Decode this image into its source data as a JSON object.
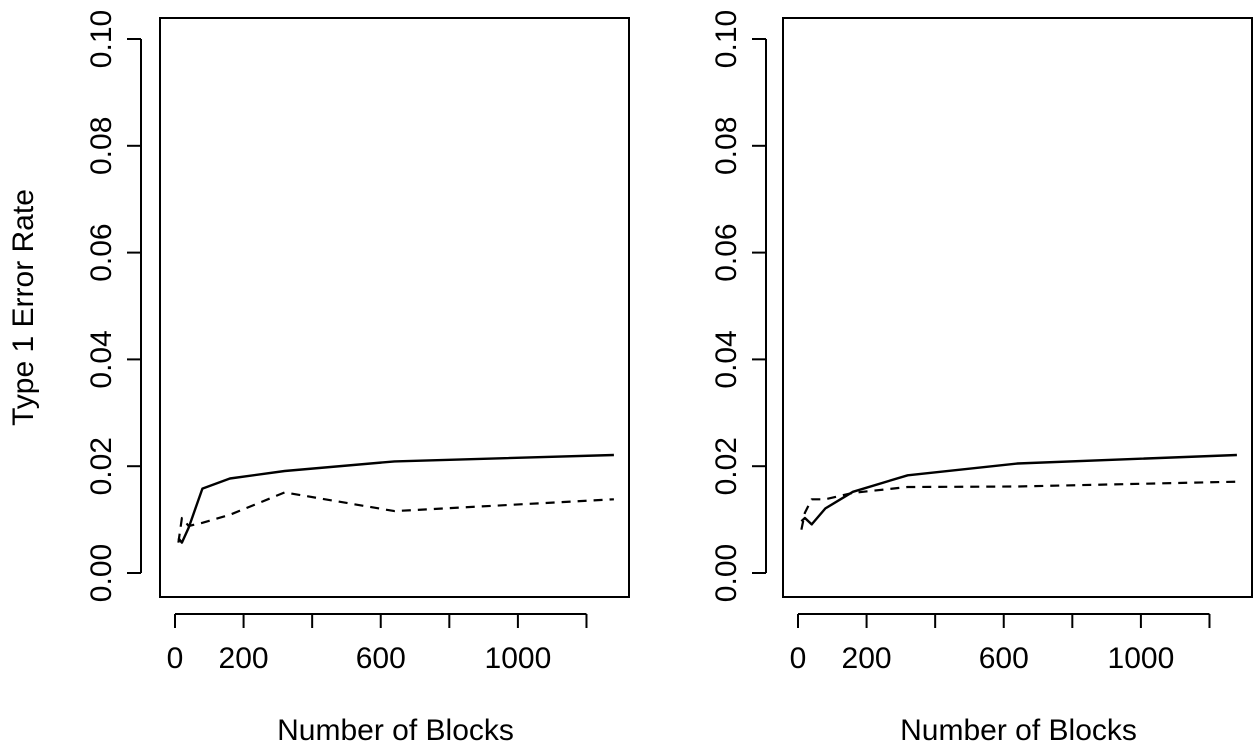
{
  "chart_data": [
    {
      "type": "line",
      "title": "",
      "xlabel": "Number of Blocks",
      "ylabel": "Type 1 Error Rate",
      "xlim": [
        0,
        1280
      ],
      "ylim": [
        0,
        0.1
      ],
      "x_ticks": [
        0,
        200,
        400,
        600,
        800,
        1000,
        1200
      ],
      "x_tick_labels": [
        "0",
        "200",
        "",
        "600",
        "",
        "1000",
        ""
      ],
      "y_ticks": [
        0,
        0.02,
        0.04,
        0.06,
        0.08,
        0.1
      ],
      "y_tick_labels": [
        "0.00",
        "0.02",
        "0.04",
        "0.06",
        "0.08",
        "0.10"
      ],
      "grid": false,
      "series": [
        {
          "style": "solid",
          "x": [
            10,
            20,
            40,
            80,
            160,
            320,
            640,
            1280
          ],
          "y": [
            0.0065,
            0.0057,
            0.0085,
            0.0158,
            0.0177,
            0.0191,
            0.0209,
            0.0221
          ]
        },
        {
          "style": "dashed",
          "x": [
            10,
            20,
            40,
            80,
            160,
            320,
            640,
            1280
          ],
          "y": [
            0.0057,
            0.0103,
            0.0088,
            0.0094,
            0.0109,
            0.0151,
            0.0116,
            0.0138
          ]
        }
      ]
    },
    {
      "type": "line",
      "title": "",
      "xlabel": "Number of Blocks",
      "ylabel": "",
      "xlim": [
        0,
        1280
      ],
      "ylim": [
        0,
        0.1
      ],
      "x_ticks": [
        0,
        200,
        400,
        600,
        800,
        1000,
        1200
      ],
      "x_tick_labels": [
        "0",
        "200",
        "",
        "600",
        "",
        "1000",
        ""
      ],
      "y_ticks": [
        0,
        0.02,
        0.04,
        0.06,
        0.08,
        0.1
      ],
      "y_tick_labels": [
        "0.00",
        "0.02",
        "0.04",
        "0.06",
        "0.08",
        "0.10"
      ],
      "grid": false,
      "series": [
        {
          "style": "solid",
          "x": [
            10,
            20,
            40,
            80,
            160,
            320,
            640,
            1280
          ],
          "y": [
            0.0097,
            0.0103,
            0.0091,
            0.0121,
            0.0152,
            0.0183,
            0.0205,
            0.0221
          ]
        },
        {
          "style": "dashed",
          "x": [
            10,
            20,
            40,
            80,
            160,
            320,
            640,
            1280
          ],
          "y": [
            0.0081,
            0.0113,
            0.0138,
            0.0138,
            0.015,
            0.0161,
            0.0162,
            0.0171
          ]
        }
      ]
    }
  ]
}
